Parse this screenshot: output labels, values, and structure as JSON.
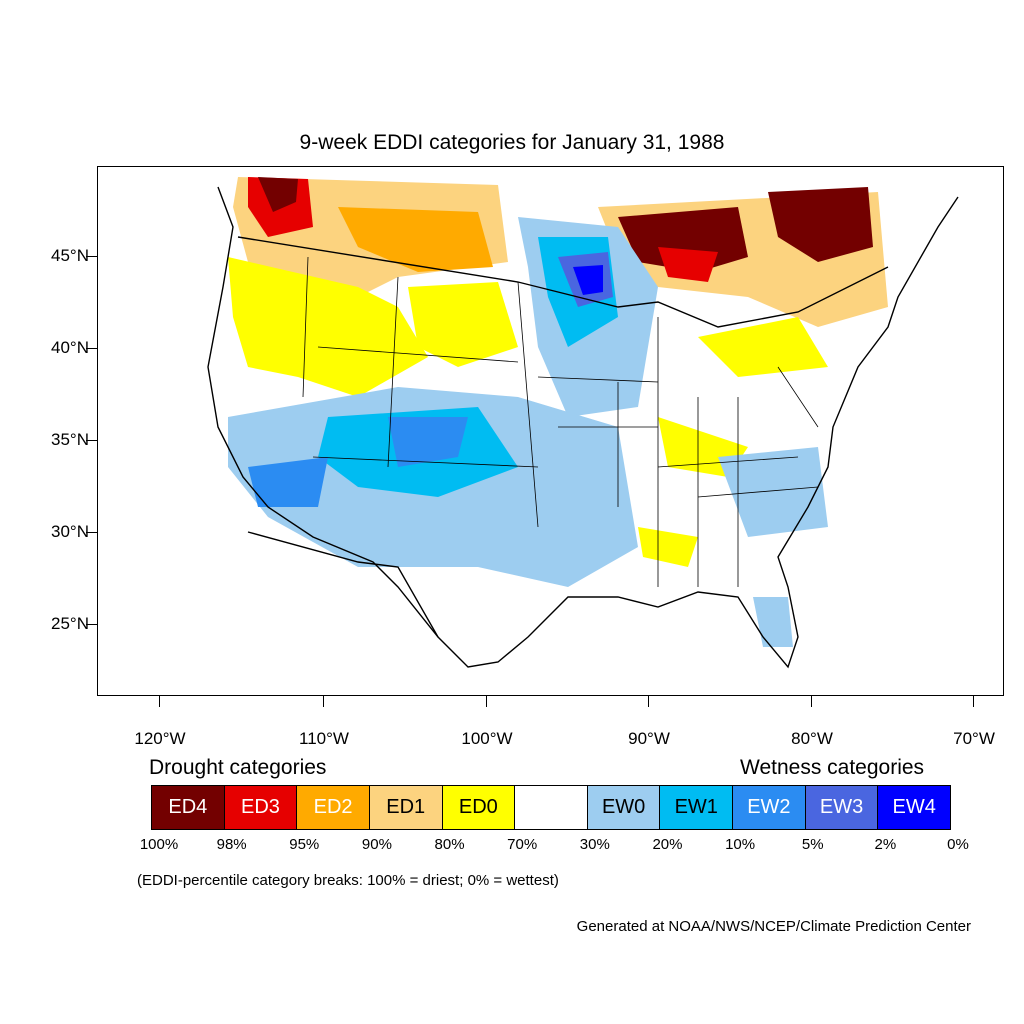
{
  "title": "9-week EDDI categories for January 31, 1988",
  "lat_labels": [
    "45°N",
    "40°N",
    "35°N",
    "30°N",
    "25°N"
  ],
  "lon_labels": [
    "120°W",
    "110°W",
    "100°W",
    "90°W",
    "80°W",
    "70°W"
  ],
  "legend": {
    "drought_heading": "Drought categories",
    "wetness_heading": "Wetness categories",
    "categories": [
      {
        "label": "ED4",
        "color": "#730000"
      },
      {
        "label": "ED3",
        "color": "#e60000"
      },
      {
        "label": "ED2",
        "color": "#ffaa00"
      },
      {
        "label": "ED1",
        "color": "#fcd37f"
      },
      {
        "label": "ED0",
        "color": "#ffff00"
      },
      {
        "label": "",
        "color": "#ffffff"
      },
      {
        "label": "EW0",
        "color": "#9dcdf0"
      },
      {
        "label": "EW1",
        "color": "#00bcf2"
      },
      {
        "label": "EW2",
        "color": "#2b8cf2"
      },
      {
        "label": "EW3",
        "color": "#4a66e0"
      },
      {
        "label": "EW4",
        "color": "#0000ff"
      }
    ],
    "percent_breaks": [
      "100%",
      "98%",
      "95%",
      "90%",
      "80%",
      "70%",
      "30%",
      "20%",
      "10%",
      "5%",
      "2%",
      "0%"
    ],
    "note": "(EDDI-percentile category breaks: 100% = driest; 0% = wettest)"
  },
  "credit": "Generated at NOAA/NWS/NCEP/Climate Prediction Center"
}
